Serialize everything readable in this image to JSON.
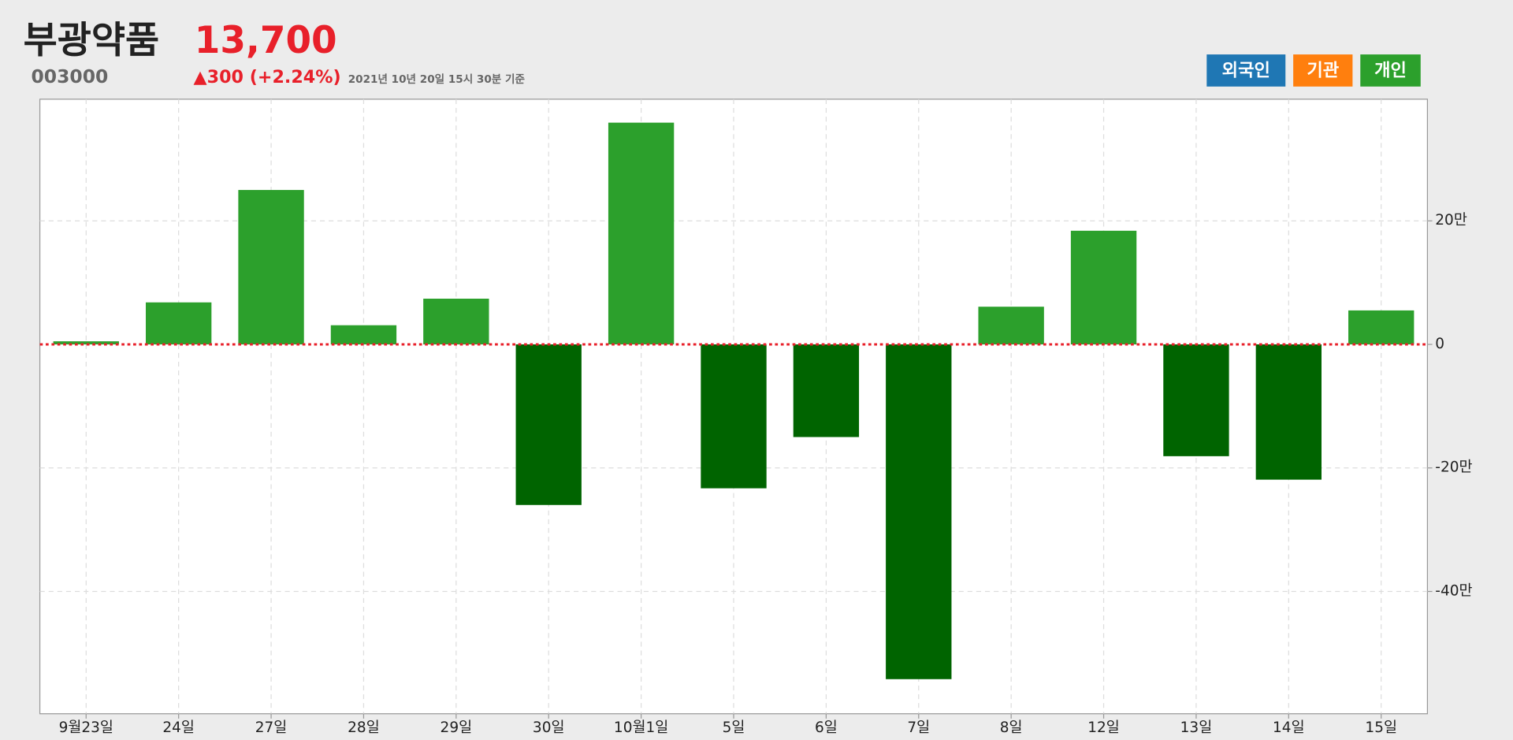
{
  "header": {
    "title": "부광약품",
    "price": "13,700",
    "code": "003000",
    "change": "▲300 (+2.24%)",
    "timestamp": "2021년 10년 20일 15시 30분 기준"
  },
  "buttons": [
    {
      "label": "외국인",
      "color": "#1f77b4"
    },
    {
      "label": "기관",
      "color": "#ff7f0e"
    }
  ],
  "chart_data": {
    "type": "bar",
    "categories": [
      "9월23일",
      "24일",
      "27일",
      "28일",
      "29일",
      "30일",
      "10월1일",
      "5일",
      "6일",
      "7일",
      "8일",
      "12일",
      "13일",
      "14일",
      "15일"
    ],
    "series": [
      {
        "name": "개인",
        "color": "#2ca02c",
        "negative_color": "#006400",
        "values": [
          0.5,
          6.8,
          25.0,
          3.1,
          7.4,
          -26.0,
          35.9,
          -23.3,
          -15.0,
          -54.2,
          6.1,
          18.4,
          -18.1,
          -21.9,
          5.5
        ]
      }
    ],
    "ylim": [
      -59.8,
      39.7
    ],
    "yticks": [
      {
        "value": -40,
        "label": "-40만"
      },
      {
        "value": -20,
        "label": "-20만"
      },
      0,
      {
        "value": 20,
        "label": "20만"
      }
    ],
    "grid": true,
    "zero_line_color": "#e8202a"
  }
}
